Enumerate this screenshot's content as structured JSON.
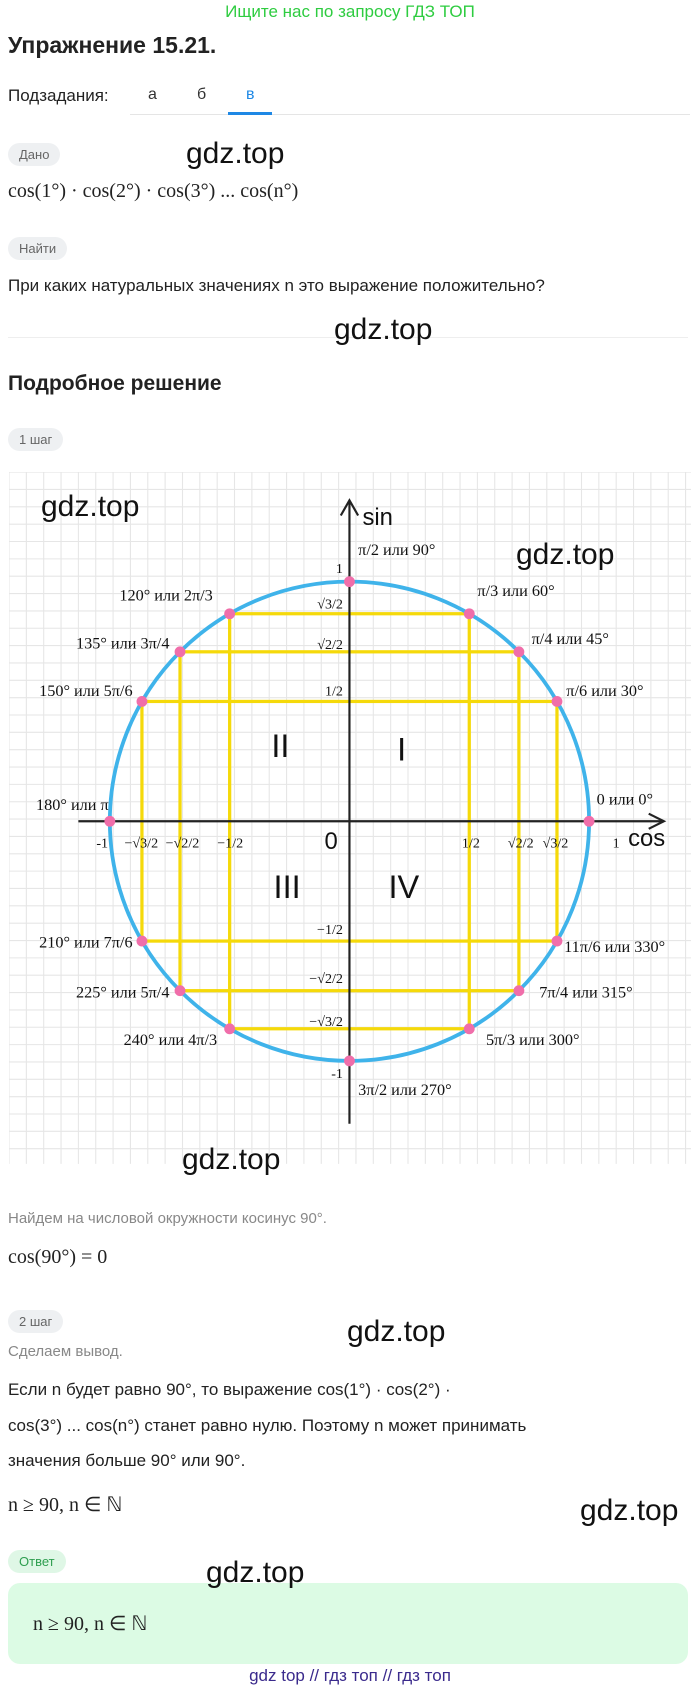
{
  "banner": "Ищите нас по запросу ГДЗ ТОП",
  "header": {
    "title": "Упражнение 15.21."
  },
  "tabs": {
    "label": "Подзадания:",
    "items": [
      "а",
      "б",
      "в"
    ]
  },
  "given": {
    "badge": "Дано",
    "text": "cos(1°) · cos(2°) · cos(3°)  ...  cos(n°)"
  },
  "find": {
    "badge": "Найти",
    "text": "При каких натуральных значениях n это выражение положительно?"
  },
  "watermarks": [
    "gdz.top",
    "gdz.top",
    "gdz.top",
    "gdz.top",
    "gdz.top",
    "gdz.top",
    "gdz.top",
    "gdz.top",
    "gdz.top"
  ],
  "solution": {
    "title": "Подробное решение",
    "step1": {
      "badge": "1 шаг",
      "text": "Найдем на числовой окружности косинус 90°.",
      "formula": "cos(90°) = 0"
    },
    "step2": {
      "badge": "2 шаг",
      "text": "Сделаем вывод.",
      "lines": [
        "Если n будет равно 90°, то выражение cos(1°) · cos(2°) ·",
        "cos(3°)  ...  cos(n°) станет равно нулю. Поэтому n может принимать",
        "значения больше 90° или 90°."
      ],
      "formula": "n ≥ 90, n ∈ ℕ"
    },
    "answer": {
      "badge": "Ответ",
      "text": "n ≥ 90, n ∈ ℕ"
    }
  },
  "diagram": {
    "x_axis": "cos",
    "y_axis": "sin",
    "origin": "0",
    "quadrants": [
      "I",
      "II",
      "III",
      "IV"
    ],
    "x_ticks": [
      "-1",
      "−√3/2",
      "−√2/2",
      "−1/2",
      "1/2",
      "√2/2",
      "√3/2",
      "1"
    ],
    "y_ticks": [
      "1",
      "√3/2",
      "√2/2",
      "1/2",
      "−1/2",
      "−√2/2",
      "−√3/2",
      "-1"
    ],
    "points": [
      {
        "angle": 0,
        "label": "0 или 0°"
      },
      {
        "angle": 30,
        "label": "π/6 или 30°"
      },
      {
        "angle": 45,
        "label": "π/4 или 45°"
      },
      {
        "angle": 60,
        "label": "π/3 или 60°"
      },
      {
        "angle": 90,
        "label": "π/2 или 90°"
      },
      {
        "angle": 120,
        "label": "120° или 2π/3"
      },
      {
        "angle": 135,
        "label": "135° или 3π/4"
      },
      {
        "angle": 150,
        "label": "150° или 5π/6"
      },
      {
        "angle": 180,
        "label": "180° или π"
      },
      {
        "angle": 210,
        "label": "210° или 7π/6"
      },
      {
        "angle": 225,
        "label": "225° или 5π/4"
      },
      {
        "angle": 240,
        "label": "240° или 4π/3"
      },
      {
        "angle": 270,
        "label": "3π/2 или 270°"
      },
      {
        "angle": 300,
        "label": "5π/3 или 300°"
      },
      {
        "angle": 315,
        "label": "7π/4 или 315°"
      },
      {
        "angle": 330,
        "label": "11π/6 или 330°"
      }
    ]
  },
  "footer": "gdz top  //  гдз топ  //  гдз топ"
}
